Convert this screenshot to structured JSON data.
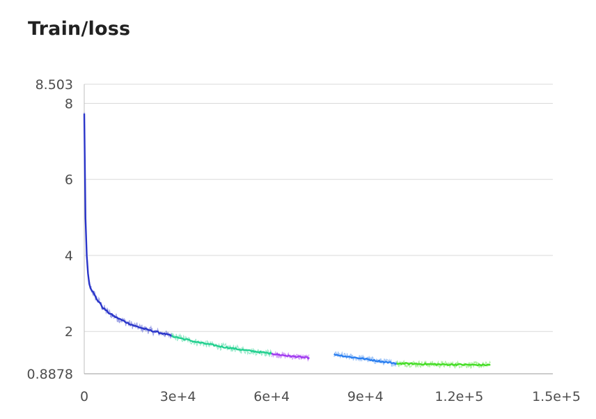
{
  "chart_data": {
    "type": "line",
    "title": "Train/loss",
    "xlabel": "",
    "ylabel": "",
    "xlim": [
      0,
      150000
    ],
    "ylim": [
      0.8878,
      8.503
    ],
    "grid": true,
    "legend": "none",
    "x_ticks": [
      "0",
      "3e+4",
      "6e+4",
      "9e+4",
      "1.2e+5",
      "1.5e+5"
    ],
    "x_tick_values": [
      0,
      30000,
      60000,
      90000,
      120000,
      150000
    ],
    "y_ticks": [
      "0.8878",
      "2",
      "4",
      "6",
      "8",
      "8.503"
    ],
    "y_tick_values": [
      0.8878,
      2,
      4,
      6,
      8,
      8.503
    ],
    "series": [
      {
        "color": "#2a35c9",
        "x": [
          0,
          300,
          600,
          1000,
          1500,
          2000,
          3000,
          4000,
          5000,
          6000,
          8000,
          10000,
          12000,
          14000,
          16000,
          18000,
          20000,
          22000,
          24000,
          26000,
          28000
        ],
        "y": [
          7.75,
          5.3,
          4.3,
          3.7,
          3.3,
          3.15,
          3.0,
          2.85,
          2.75,
          2.62,
          2.48,
          2.38,
          2.3,
          2.22,
          2.15,
          2.1,
          2.05,
          2.01,
          1.97,
          1.93,
          1.88
        ]
      },
      {
        "color": "#22d08f",
        "x": [
          28000,
          32000,
          36000,
          40000,
          44000,
          48000,
          52000,
          56000,
          60000
        ],
        "y": [
          1.88,
          1.8,
          1.72,
          1.66,
          1.6,
          1.55,
          1.5,
          1.46,
          1.42
        ]
      },
      {
        "color": "#a23cf0",
        "x": [
          60000,
          63000,
          66000,
          69000,
          72000
        ],
        "y": [
          1.42,
          1.38,
          1.35,
          1.33,
          1.3
        ]
      },
      {
        "color": "#2b7ff0",
        "x": [
          80000,
          84000,
          88000,
          92000,
          96000,
          100000
        ],
        "y": [
          1.4,
          1.34,
          1.3,
          1.25,
          1.2,
          1.16
        ]
      },
      {
        "color": "#45dd25",
        "x": [
          100000,
          105000,
          110000,
          115000,
          120000,
          125000,
          130000
        ],
        "y": [
          1.16,
          1.15,
          1.14,
          1.13,
          1.13,
          1.12,
          1.12
        ]
      }
    ]
  }
}
